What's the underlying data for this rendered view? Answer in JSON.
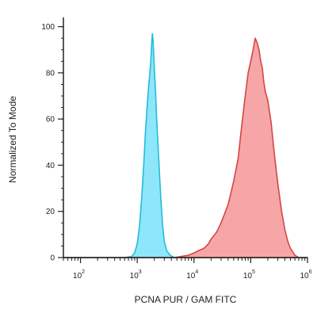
{
  "chart_data": {
    "type": "area",
    "title": "",
    "xlabel": "PCNA PUR / GAM FITC",
    "ylabel": "Normalized To Mode",
    "x_scale": "log",
    "xlim": [
      50,
      1000000
    ],
    "ylim": [
      0,
      104
    ],
    "x_ticks": [
      {
        "value": 100,
        "base": "10",
        "exp": "2"
      },
      {
        "value": 1000,
        "base": "10",
        "exp": "3"
      },
      {
        "value": 10000,
        "base": "10",
        "exp": "4"
      },
      {
        "value": 100000,
        "base": "10",
        "exp": "5"
      },
      {
        "value": 1000000,
        "base": "10",
        "exp": "6"
      }
    ],
    "y_ticks": [
      {
        "value": 0,
        "label": "0"
      },
      {
        "value": 20,
        "label": "20"
      },
      {
        "value": 40,
        "label": "40"
      },
      {
        "value": 60,
        "label": "60"
      },
      {
        "value": 80,
        "label": "80"
      },
      {
        "value": 100,
        "label": "100"
      }
    ],
    "grid": false,
    "series": [
      {
        "fill": "#8ee6fa",
        "stroke": "#22bcd8",
        "points": [
          [
            50,
            0
          ],
          [
            600,
            0
          ],
          [
            800,
            0.5
          ],
          [
            900,
            2
          ],
          [
            1000,
            6
          ],
          [
            1100,
            14
          ],
          [
            1200,
            26
          ],
          [
            1300,
            40
          ],
          [
            1400,
            55
          ],
          [
            1500,
            66
          ],
          [
            1600,
            75
          ],
          [
            1700,
            82
          ],
          [
            1750,
            87
          ],
          [
            1800,
            93
          ],
          [
            1850,
            97
          ],
          [
            1900,
            94
          ],
          [
            1950,
            88
          ],
          [
            2000,
            82
          ],
          [
            2100,
            72
          ],
          [
            2200,
            60
          ],
          [
            2400,
            42
          ],
          [
            2600,
            26
          ],
          [
            2800,
            14
          ],
          [
            3000,
            7
          ],
          [
            3300,
            3
          ],
          [
            3800,
            1
          ],
          [
            4500,
            0
          ],
          [
            1000000,
            0
          ]
        ]
      },
      {
        "fill": "#f6a6a6",
        "stroke": "#d64545",
        "points": [
          [
            50,
            0
          ],
          [
            4500,
            0
          ],
          [
            6000,
            0.5
          ],
          [
            8000,
            1
          ],
          [
            10000,
            2
          ],
          [
            12000,
            3
          ],
          [
            15000,
            4
          ],
          [
            18000,
            6
          ],
          [
            20000,
            8
          ],
          [
            25000,
            11
          ],
          [
            30000,
            15
          ],
          [
            40000,
            23
          ],
          [
            50000,
            33
          ],
          [
            60000,
            43
          ],
          [
            70000,
            58
          ],
          [
            80000,
            70
          ],
          [
            90000,
            80
          ],
          [
            100000,
            85
          ],
          [
            110000,
            90
          ],
          [
            120000,
            95
          ],
          [
            130000,
            93
          ],
          [
            140000,
            90
          ],
          [
            150000,
            85
          ],
          [
            160000,
            82
          ],
          [
            170000,
            76
          ],
          [
            180000,
            72
          ],
          [
            200000,
            68
          ],
          [
            230000,
            58
          ],
          [
            260000,
            45
          ],
          [
            300000,
            32
          ],
          [
            350000,
            20
          ],
          [
            400000,
            12
          ],
          [
            450000,
            7
          ],
          [
            500000,
            4
          ],
          [
            600000,
            1
          ],
          [
            700000,
            0
          ],
          [
            1000000,
            0
          ]
        ]
      }
    ]
  }
}
